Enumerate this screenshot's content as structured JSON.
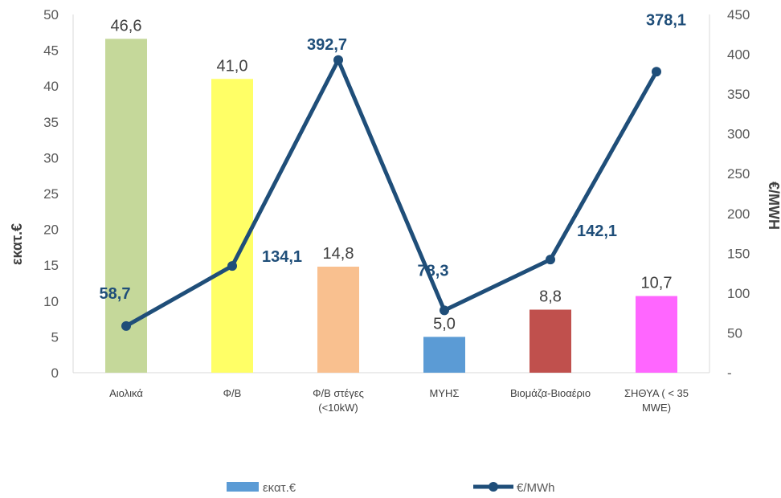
{
  "chart_data": {
    "type": "bar",
    "categories": [
      [
        "Αιολικά"
      ],
      [
        "Φ/Β"
      ],
      [
        "Φ/Β στέγες",
        "(<10kW)"
      ],
      [
        "ΜΥΗΣ"
      ],
      [
        "Βιομάζα-Βιοαέριο"
      ],
      [
        "ΣΗΘΥΑ ( < 35",
        "MWE)"
      ]
    ],
    "series": [
      {
        "name": "εκατ.€",
        "kind": "bar",
        "axis": "left",
        "values": [
          46.6,
          41.0,
          14.8,
          5.0,
          8.8,
          10.7
        ],
        "labels": [
          "46,6",
          "41,0",
          "14,8",
          "5,0",
          "8,8",
          "10,7"
        ],
        "colors": [
          "#C5D89A",
          "#FFFF66",
          "#F9C08F",
          "#5B9BD5",
          "#C0504D",
          "#FF66FF"
        ],
        "legend_color": "#5B9BD5"
      },
      {
        "name": "€/MWh",
        "kind": "line",
        "axis": "right",
        "values": [
          58.7,
          134.1,
          392.7,
          78.3,
          142.1,
          378.1
        ],
        "labels": [
          "58,7",
          "134,1",
          "392,7",
          "78,3",
          "142,1",
          "378,1"
        ],
        "color": "#1F4E79"
      }
    ],
    "ylabel": "εκατ.€",
    "y2label": "€/MWH",
    "ylim": [
      0,
      50
    ],
    "y2lim": [
      0,
      450
    ],
    "yticks": [
      "0",
      "5",
      "10",
      "15",
      "20",
      "25",
      "30",
      "35",
      "40",
      "45",
      "50"
    ],
    "y2ticks": [
      "-",
      "50",
      "100",
      "150",
      "200",
      "250",
      "300",
      "350",
      "400",
      "450"
    ],
    "grid": false,
    "legend_position": "bottom"
  }
}
